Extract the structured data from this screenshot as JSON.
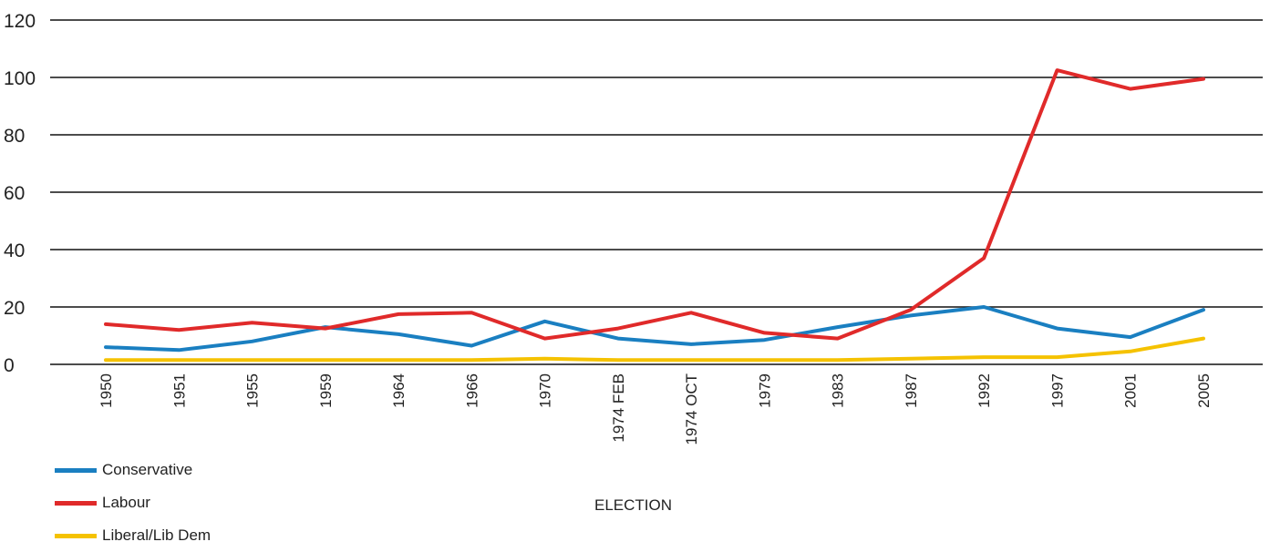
{
  "chart_data": {
    "type": "line",
    "categories": [
      "1950",
      "1951",
      "1955",
      "1959",
      "1964",
      "1966",
      "1970",
      "1974 FEB",
      "1974 OCT",
      "1979",
      "1983",
      "1987",
      "1992",
      "1997",
      "2001",
      "2005"
    ],
    "series": [
      {
        "name": "Conservative",
        "color": "#1a7fc1",
        "values": [
          6,
          5,
          8,
          13,
          10.5,
          6.5,
          15,
          9,
          7,
          8.5,
          13,
          17,
          20,
          12.5,
          9.5,
          19
        ]
      },
      {
        "name": "Labour",
        "color": "#e02a2a",
        "values": [
          14,
          12,
          14.5,
          12.5,
          17.5,
          18,
          9,
          12.5,
          18,
          11,
          9,
          19,
          37,
          102.5,
          96,
          99.5
        ]
      },
      {
        "name": "Liberal/Lib Dem",
        "color": "#f5c200",
        "values": [
          1.5,
          1.5,
          1.5,
          1.5,
          1.5,
          1.5,
          2,
          1.5,
          1.5,
          1.5,
          1.5,
          2,
          2.5,
          2.5,
          4.5,
          9
        ]
      }
    ],
    "yticks": [
      "0",
      "20",
      "40",
      "60",
      "80",
      "100",
      "120"
    ],
    "ylim": [
      0,
      120
    ],
    "xlabel": "ELECTION",
    "ylabel": "",
    "title": "",
    "grid": "horizontal",
    "legend_position": "bottom-left"
  }
}
